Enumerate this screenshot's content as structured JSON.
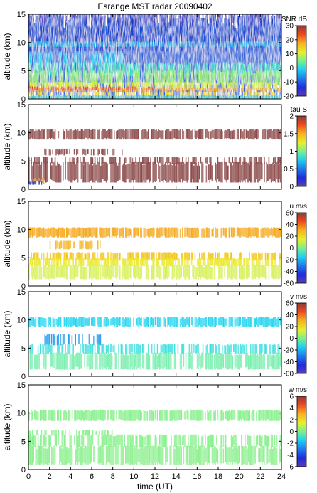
{
  "title": "Esrange MST radar 20090402",
  "xlabel": "time (UT)",
  "chart_data": [
    {
      "type": "heatmap",
      "ylabel": "altitude (km)",
      "colorbar_label": "SNR dB",
      "cbar_ticks": [
        -20,
        -10,
        0,
        10,
        20,
        30
      ],
      "clim": [
        -20,
        30
      ],
      "xlim": [
        0,
        24
      ],
      "ylim": [
        0,
        15
      ],
      "xticks": [
        0,
        2,
        4,
        6,
        8,
        10,
        12,
        14,
        16,
        18,
        20,
        22,
        24
      ],
      "yticks": [
        0,
        5,
        10,
        15
      ],
      "x_tick_labels_shown": false
    },
    {
      "type": "heatmap",
      "ylabel": "altitude (km)",
      "colorbar_label": "tau S",
      "cbar_ticks": [
        0,
        0.5,
        1,
        1.5,
        2
      ],
      "clim": [
        0,
        2
      ],
      "xlim": [
        0,
        24
      ],
      "ylim": [
        0,
        15
      ],
      "xticks": [
        0,
        2,
        4,
        6,
        8,
        10,
        12,
        14,
        16,
        18,
        20,
        22,
        24
      ],
      "yticks": [
        0,
        5,
        10,
        15
      ],
      "x_tick_labels_shown": false
    },
    {
      "type": "heatmap",
      "ylabel": "altitude (km)",
      "colorbar_label": "u m/s",
      "cbar_ticks": [
        -60,
        -40,
        -20,
        0,
        20,
        40,
        60
      ],
      "clim": [
        -60,
        60
      ],
      "xlim": [
        0,
        24
      ],
      "ylim": [
        0,
        15
      ],
      "xticks": [
        0,
        2,
        4,
        6,
        8,
        10,
        12,
        14,
        16,
        18,
        20,
        22,
        24
      ],
      "yticks": [
        0,
        5,
        10,
        15
      ],
      "x_tick_labels_shown": false
    },
    {
      "type": "heatmap",
      "ylabel": "altitude (km)",
      "colorbar_label": "v m/s",
      "cbar_ticks": [
        -60,
        -40,
        -20,
        0,
        20,
        40,
        60
      ],
      "clim": [
        -60,
        60
      ],
      "xlim": [
        0,
        24
      ],
      "ylim": [
        0,
        15
      ],
      "xticks": [
        0,
        2,
        4,
        6,
        8,
        10,
        12,
        14,
        16,
        18,
        20,
        22,
        24
      ],
      "yticks": [
        0,
        5,
        10,
        15
      ],
      "x_tick_labels_shown": false
    },
    {
      "type": "heatmap",
      "ylabel": "altitude (km)",
      "colorbar_label": "w m/s",
      "cbar_ticks": [
        -6,
        -4,
        -2,
        0,
        2,
        4,
        6
      ],
      "clim": [
        -6,
        6
      ],
      "xlim": [
        0,
        24
      ],
      "ylim": [
        0,
        15
      ],
      "xticks": [
        0,
        2,
        4,
        6,
        8,
        10,
        12,
        14,
        16,
        18,
        20,
        22,
        24
      ],
      "yticks": [
        0,
        5,
        10,
        15
      ],
      "x_tick_labels_shown": true
    }
  ]
}
